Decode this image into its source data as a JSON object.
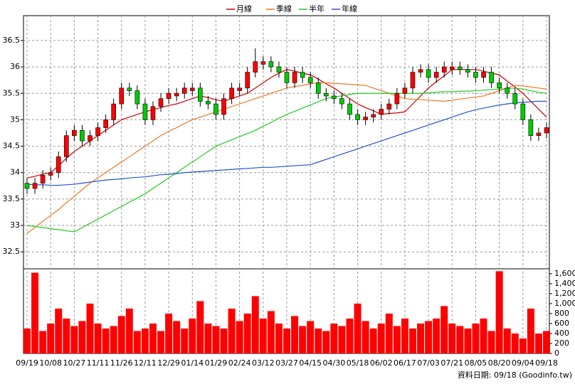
{
  "chart_data": {
    "type": "candlestick",
    "categories": [
      "09/19",
      null,
      null,
      "10/08",
      null,
      null,
      "10/27",
      null,
      null,
      "11/11",
      null,
      null,
      "11/26",
      null,
      null,
      "12/11",
      null,
      null,
      "12/29",
      null,
      null,
      "01/14",
      null,
      null,
      "01/29",
      null,
      null,
      "02/24",
      null,
      null,
      "03/12",
      null,
      null,
      "03/27",
      null,
      null,
      "04/15",
      null,
      null,
      "04/30",
      null,
      null,
      "05/18",
      null,
      null,
      "06/02",
      null,
      null,
      "06/17",
      null,
      null,
      "07/03",
      null,
      null,
      "07/21",
      null,
      null,
      "08/05",
      null,
      null,
      "08/20",
      null,
      null,
      "09/04",
      null,
      null,
      "09/18"
    ],
    "open": [
      33.8,
      33.7,
      33.8,
      33.95,
      34.0,
      34.3,
      34.7,
      34.8,
      34.6,
      34.7,
      34.85,
      35.0,
      35.3,
      35.6,
      35.55,
      35.3,
      35.0,
      35.25,
      35.4,
      35.45,
      35.5,
      35.55,
      35.6,
      35.35,
      35.3,
      35.1,
      35.4,
      35.55,
      35.6,
      35.9,
      36.05,
      36.1,
      36.0,
      35.9,
      35.7,
      35.9,
      35.8,
      35.7,
      35.5,
      35.45,
      35.4,
      35.3,
      35.1,
      35.0,
      35.05,
      35.1,
      35.2,
      35.3,
      35.5,
      35.6,
      35.9,
      35.95,
      35.8,
      35.9,
      35.95,
      36.0,
      35.95,
      35.9,
      35.8,
      35.9,
      35.7,
      35.6,
      35.5,
      35.3,
      35.0,
      34.7,
      34.75
    ],
    "high": [
      33.9,
      33.9,
      34.05,
      34.1,
      34.4,
      34.8,
      34.9,
      34.9,
      34.8,
      34.95,
      35.1,
      35.4,
      35.7,
      35.7,
      35.65,
      35.4,
      35.35,
      35.5,
      35.6,
      35.6,
      35.7,
      35.7,
      35.7,
      35.45,
      35.4,
      35.5,
      35.7,
      35.7,
      36.0,
      36.35,
      36.2,
      36.2,
      36.1,
      36.0,
      36.0,
      36.0,
      35.9,
      35.8,
      35.6,
      35.55,
      35.5,
      35.4,
      35.2,
      35.15,
      35.2,
      35.3,
      35.4,
      35.6,
      35.7,
      36.0,
      36.05,
      36.05,
      36.0,
      36.1,
      36.1,
      36.1,
      36.05,
      36.0,
      36.0,
      36.0,
      35.8,
      35.7,
      35.6,
      35.4,
      35.1,
      34.85,
      34.95
    ],
    "low": [
      33.6,
      33.6,
      33.7,
      33.85,
      33.9,
      34.2,
      34.6,
      34.5,
      34.5,
      34.6,
      34.75,
      34.9,
      35.2,
      35.45,
      35.2,
      34.9,
      34.9,
      35.15,
      35.3,
      35.35,
      35.4,
      35.45,
      35.25,
      35.2,
      35.0,
      35.0,
      35.3,
      35.45,
      35.5,
      35.8,
      35.95,
      35.9,
      35.8,
      35.6,
      35.6,
      35.7,
      35.6,
      35.4,
      35.35,
      35.3,
      35.2,
      35.0,
      34.9,
      34.9,
      34.95,
      35.0,
      35.1,
      35.2,
      35.4,
      35.5,
      35.8,
      35.7,
      35.7,
      35.8,
      35.85,
      35.85,
      35.8,
      35.7,
      35.7,
      35.6,
      35.5,
      35.4,
      35.2,
      34.9,
      34.6,
      34.6,
      34.65
    ],
    "close": [
      33.7,
      33.8,
      33.95,
      34.0,
      34.3,
      34.7,
      34.8,
      34.6,
      34.7,
      34.85,
      35.0,
      35.3,
      35.6,
      35.55,
      35.3,
      35.0,
      35.25,
      35.4,
      35.5,
      35.5,
      35.6,
      35.6,
      35.35,
      35.3,
      35.1,
      35.4,
      35.6,
      35.6,
      35.9,
      36.1,
      36.1,
      36.0,
      35.9,
      35.7,
      35.9,
      35.8,
      35.7,
      35.5,
      35.45,
      35.4,
      35.3,
      35.1,
      35.0,
      35.05,
      35.1,
      35.2,
      35.3,
      35.5,
      35.6,
      35.9,
      35.95,
      35.8,
      35.9,
      36.0,
      36.0,
      35.95,
      35.9,
      35.8,
      35.9,
      35.7,
      35.6,
      35.5,
      35.3,
      35.0,
      34.7,
      34.75,
      34.85
    ],
    "up_color": "#ff0000",
    "down_color": "#00cc00",
    "ylim": [
      32.18,
      36.97
    ],
    "yticks": [
      32.5,
      33,
      33.5,
      34,
      34.5,
      35,
      35.5,
      36,
      36.5
    ],
    "grid": true,
    "series": [
      {
        "name": "月線",
        "color": "#cc0000",
        "values": [
          33.9,
          33.93,
          33.97,
          34.0,
          34.13,
          34.27,
          34.4,
          34.5,
          34.6,
          34.7,
          34.8,
          34.9,
          35.0,
          35.05,
          35.1,
          35.15,
          35.19,
          35.23,
          35.27,
          35.3,
          35.35,
          35.4,
          35.45,
          35.42,
          35.38,
          35.35,
          35.4,
          35.45,
          35.5,
          35.6,
          35.7,
          35.8,
          35.88,
          35.95,
          35.92,
          35.88,
          35.85,
          35.77,
          35.68,
          35.6,
          35.5,
          35.4,
          35.3,
          35.23,
          35.17,
          35.1,
          35.12,
          35.13,
          35.15,
          35.3,
          35.45,
          35.6,
          35.72,
          35.83,
          35.95,
          35.95,
          35.95,
          35.95,
          35.92,
          35.88,
          35.85,
          35.73,
          35.62,
          35.5,
          35.35,
          35.2,
          35.05
        ]
      },
      {
        "name": "季線",
        "color": "#ee7722",
        "values": [
          32.85,
          32.96,
          33.08,
          33.19,
          33.3,
          33.43,
          33.55,
          33.68,
          33.8,
          33.9,
          34.0,
          34.1,
          34.2,
          34.3,
          34.4,
          34.5,
          34.6,
          34.7,
          34.78,
          34.85,
          34.93,
          35.0,
          35.05,
          35.1,
          35.15,
          35.2,
          35.25,
          35.3,
          35.35,
          35.4,
          35.45,
          35.5,
          35.55,
          35.6,
          35.63,
          35.65,
          35.68,
          35.7,
          35.7,
          35.69,
          35.68,
          35.67,
          35.66,
          35.65,
          35.6,
          35.55,
          35.5,
          35.45,
          35.4,
          35.39,
          35.38,
          35.37,
          35.36,
          35.35,
          35.37,
          35.39,
          35.41,
          35.43,
          35.45,
          35.5,
          35.55,
          35.6,
          35.65,
          35.64,
          35.62,
          35.6,
          35.58
        ]
      },
      {
        "name": "半年",
        "color": "#22cc22",
        "values": [
          33.0,
          32.98,
          32.96,
          32.94,
          32.92,
          32.9,
          32.88,
          32.96,
          33.04,
          33.12,
          33.2,
          33.28,
          33.36,
          33.44,
          33.52,
          33.6,
          33.7,
          33.8,
          33.9,
          34.0,
          34.1,
          34.2,
          34.3,
          34.4,
          34.5,
          34.56,
          34.62,
          34.68,
          34.74,
          34.8,
          34.88,
          34.95,
          35.03,
          35.1,
          35.16,
          35.22,
          35.28,
          35.34,
          35.4,
          35.43,
          35.45,
          35.48,
          35.5,
          35.5,
          35.5,
          35.5,
          35.5,
          35.5,
          35.5,
          35.5,
          35.5,
          35.51,
          35.52,
          35.53,
          35.53,
          35.54,
          35.54,
          35.55,
          35.56,
          35.57,
          35.58,
          35.59,
          35.6,
          35.58,
          35.55,
          35.52,
          35.5
        ]
      },
      {
        "name": "年線",
        "color": "#1f55cc",
        "values": [
          33.78,
          33.77,
          33.77,
          33.76,
          33.76,
          33.77,
          33.78,
          33.8,
          33.82,
          33.84,
          33.86,
          33.87,
          33.88,
          33.9,
          33.91,
          33.92,
          33.94,
          33.96,
          33.97,
          33.98,
          34.0,
          34.01,
          34.02,
          34.03,
          34.04,
          34.05,
          34.06,
          34.07,
          34.08,
          34.09,
          34.1,
          34.1,
          34.11,
          34.12,
          34.13,
          34.14,
          34.15,
          34.2,
          34.25,
          34.3,
          34.35,
          34.4,
          34.45,
          34.5,
          34.55,
          34.6,
          34.65,
          34.7,
          34.75,
          34.8,
          34.85,
          34.9,
          34.95,
          35.0,
          35.05,
          35.1,
          35.15,
          35.19,
          35.22,
          35.25,
          35.28,
          35.3,
          35.32,
          35.33,
          35.34,
          35.35,
          35.35
        ]
      }
    ],
    "volume": {
      "color": "#ff0000",
      "values": [
        500,
        1620,
        450,
        600,
        900,
        700,
        550,
        650,
        1000,
        600,
        500,
        550,
        750,
        900,
        450,
        500,
        600,
        450,
        800,
        650,
        500,
        700,
        1050,
        600,
        550,
        500,
        900,
        650,
        800,
        1150,
        700,
        850,
        600,
        500,
        750,
        550,
        650,
        500,
        450,
        600,
        550,
        700,
        1000,
        650,
        500,
        600,
        800,
        550,
        700,
        500,
        600,
        650,
        700,
        950,
        600,
        550,
        500,
        600,
        700,
        450,
        1650,
        500,
        400,
        300,
        900,
        400,
        450
      ],
      "ylim": [
        0,
        1670
      ],
      "yticks": [
        0,
        200,
        400,
        600,
        800,
        {
          "value": 1000,
          "label": "1,000"
        },
        {
          "value": 1200,
          "label": "1,200"
        },
        {
          "value": 1400,
          "label": "1,400"
        },
        {
          "value": 1600,
          "label": "1,600"
        }
      ]
    },
    "footnote": "資料日期: 09/18 (Goodinfo.tw)"
  }
}
